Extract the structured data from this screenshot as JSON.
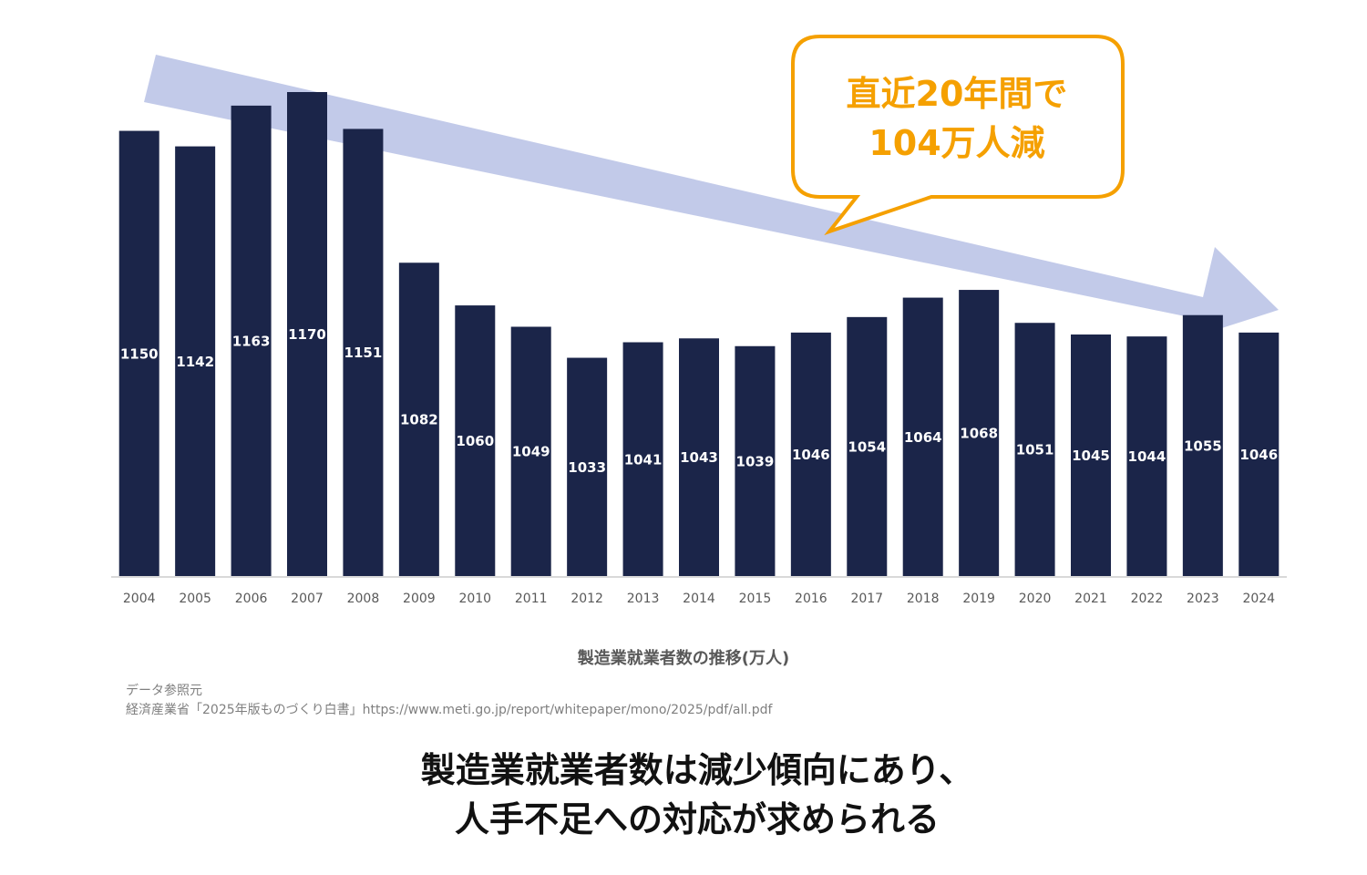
{
  "colors": {
    "bar": "#1b2549",
    "trend_arrow": "#c2cae9",
    "callout": "#f5a000",
    "axis": "#d9d9d9"
  },
  "callout": {
    "line1": "直近20年間で",
    "line2": "104万人減"
  },
  "chart_data": {
    "type": "bar",
    "title": "製造業就業者数の推移(万人)",
    "categories": [
      "2004",
      "2005",
      "2006",
      "2007",
      "2008",
      "2009",
      "2010",
      "2011",
      "2012",
      "2013",
      "2014",
      "2015",
      "2016",
      "2017",
      "2018",
      "2019",
      "2020",
      "2021",
      "2022",
      "2023",
      "2024"
    ],
    "values": [
      1150,
      1142,
      1163,
      1170,
      1151,
      1082,
      1060,
      1049,
      1033,
      1041,
      1043,
      1039,
      1046,
      1054,
      1064,
      1068,
      1051,
      1045,
      1044,
      1055,
      1046
    ],
    "ylim": [
      920,
      1170
    ],
    "grid": false,
    "legend": "none"
  },
  "source": {
    "line1": "データ参照元",
    "line2": "経済産業省「2025年版ものづくり白書」https://www.meti.go.jp/report/whitepaper/mono/2025/pdf/all.pdf"
  },
  "conclusion": {
    "line1": "製造業就業者数は減少傾向にあり、",
    "line2": "人手不足への対応が求められる"
  }
}
